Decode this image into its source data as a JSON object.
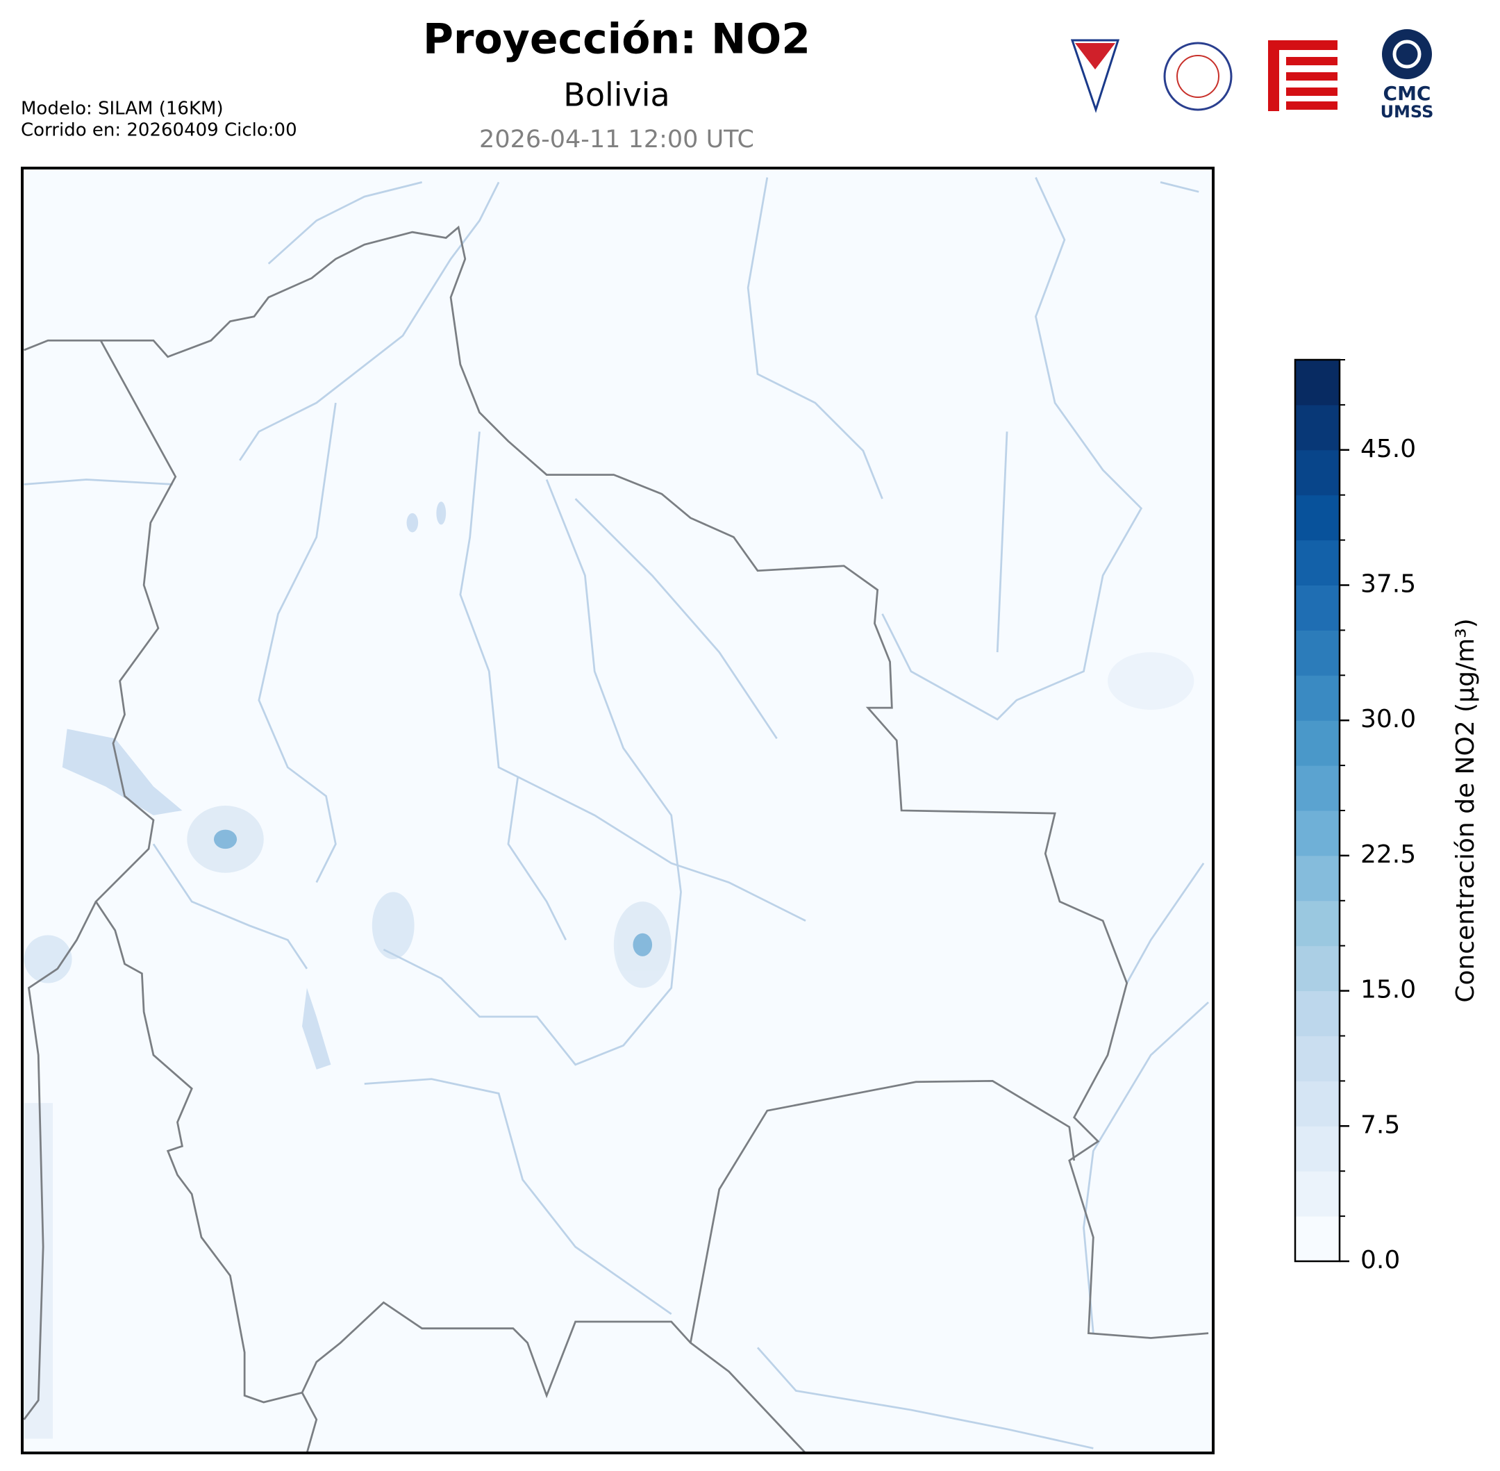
{
  "header": {
    "title": "Proyección: NO2",
    "subtitle": "Bolivia",
    "datetime": "2026-04-11 12:00 UTC",
    "model": "Modelo: SILAM (16KM)",
    "run": "Corrido en: 20260409 Ciclo:00",
    "logo_text": [
      "CMC",
      "UMSS"
    ]
  },
  "chart_data": {
    "type": "colorbar",
    "label": "Concentración de NO2 (µg/m³)",
    "ylim": [
      0,
      50
    ],
    "yticks": [
      {
        "value": 0,
        "label": "0.0"
      },
      7.5,
      {
        "value": 15,
        "label": "15.0"
      },
      22.5,
      {
        "value": 30,
        "label": "30.0"
      },
      37.5,
      {
        "value": 45,
        "label": "45.0"
      }
    ],
    "levels": [
      0,
      2.5,
      5,
      7.5,
      10,
      12.5,
      15,
      17.5,
      20,
      22.5,
      25,
      27.5,
      30,
      32.5,
      35,
      37.5,
      40,
      42.5,
      45,
      47.5,
      50
    ],
    "colors": [
      "#f7fbff",
      "#ebf3fb",
      "#e0ecf8",
      "#d5e5f4",
      "#cadef0",
      "#bdd7ec",
      "#abcfe5",
      "#9ac8e0",
      "#85bcdc",
      "#6fb0d7",
      "#5ba3d0",
      "#4a98c9",
      "#3a8ac2",
      "#2c7cba",
      "#1f6eb3",
      "#1361a9",
      "#08529b",
      "#08458a",
      "#083877",
      "#082b62"
    ]
  }
}
